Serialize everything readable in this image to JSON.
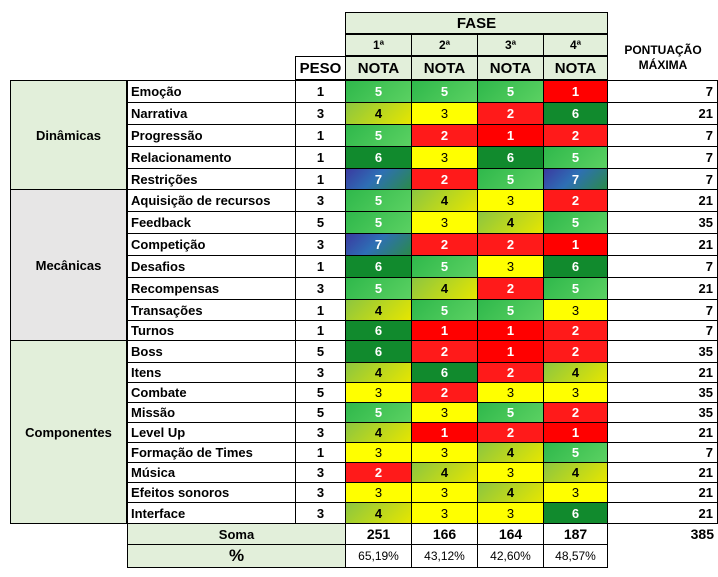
{
  "header": {
    "fase": "FASE",
    "peso": "PESO",
    "pontuacao_line1": "PONTUAÇÃO",
    "pontuacao_line2": "MÁXIMA",
    "phases": [
      "1ª",
      "2ª",
      "3ª",
      "4ª"
    ],
    "nota": "NOTA"
  },
  "groups": [
    {
      "name": "Dinâmicas",
      "shade": "#e2efda"
    },
    {
      "name": "Mecânicas",
      "shade": "#e7e6e6"
    },
    {
      "name": "Componentes",
      "shade": "#e2efda"
    }
  ],
  "rows": [
    {
      "label": "Emoção",
      "peso": "1",
      "notas": [
        5,
        5,
        5,
        1
      ],
      "max": "7"
    },
    {
      "label": "Narrativa",
      "peso": "3",
      "notas": [
        4,
        3,
        2,
        6
      ],
      "max": "21"
    },
    {
      "label": "Progressão",
      "peso": "1",
      "notas": [
        5,
        2,
        1,
        2
      ],
      "max": "7"
    },
    {
      "label": "Relacionamento",
      "peso": "1",
      "notas": [
        6,
        3,
        6,
        5
      ],
      "max": "7"
    },
    {
      "label": "Restrições",
      "peso": "1",
      "notas": [
        7,
        2,
        5,
        7
      ],
      "max": "7"
    },
    {
      "label": "Aquisição de recursos",
      "peso": "3",
      "notas": [
        5,
        4,
        3,
        2
      ],
      "max": "21"
    },
    {
      "label": "Feedback",
      "peso": "5",
      "notas": [
        5,
        3,
        4,
        5
      ],
      "max": "35"
    },
    {
      "label": "Competição",
      "peso": "3",
      "notas": [
        7,
        2,
        2,
        1
      ],
      "max": "21"
    },
    {
      "label": "Desafios",
      "peso": "1",
      "notas": [
        6,
        5,
        3,
        6
      ],
      "max": "7"
    },
    {
      "label": "Recompensas",
      "peso": "3",
      "notas": [
        5,
        4,
        2,
        5
      ],
      "max": "21"
    },
    {
      "label": "Transações",
      "peso": "1",
      "notas": [
        4,
        5,
        5,
        3
      ],
      "max": "7"
    },
    {
      "label": "Turnos",
      "peso": "1",
      "notas": [
        6,
        1,
        1,
        2
      ],
      "max": "7"
    },
    {
      "label": "Boss",
      "peso": "5",
      "notas": [
        6,
        2,
        1,
        2
      ],
      "max": "35"
    },
    {
      "label": "Itens",
      "peso": "3",
      "notas": [
        4,
        6,
        2,
        4
      ],
      "max": "21"
    },
    {
      "label": "Combate",
      "peso": "5",
      "notas": [
        3,
        2,
        3,
        3
      ],
      "max": "35"
    },
    {
      "label": "Missão",
      "peso": "5",
      "notas": [
        5,
        3,
        5,
        2
      ],
      "max": "35"
    },
    {
      "label": "Level Up",
      "peso": "3",
      "notas": [
        4,
        1,
        2,
        1
      ],
      "max": "21"
    },
    {
      "label": "Formação de Times",
      "peso": "1",
      "notas": [
        3,
        3,
        4,
        5
      ],
      "max": "7"
    },
    {
      "label": "Música",
      "peso": "3",
      "notas": [
        2,
        4,
        3,
        4
      ],
      "max": "21"
    },
    {
      "label": "Efeitos sonoros",
      "peso": "3",
      "notas": [
        3,
        3,
        4,
        3
      ],
      "max": "21"
    },
    {
      "label": "Interface",
      "peso": "3",
      "notas": [
        4,
        3,
        3,
        6
      ],
      "max": "21"
    }
  ],
  "soma": {
    "label": "Soma",
    "values": [
      "251",
      "166",
      "164",
      "187"
    ],
    "max": "385"
  },
  "percent": {
    "label": "%",
    "values": [
      "65,19%",
      "43,12%",
      "42,60%",
      "48,57%"
    ]
  }
}
